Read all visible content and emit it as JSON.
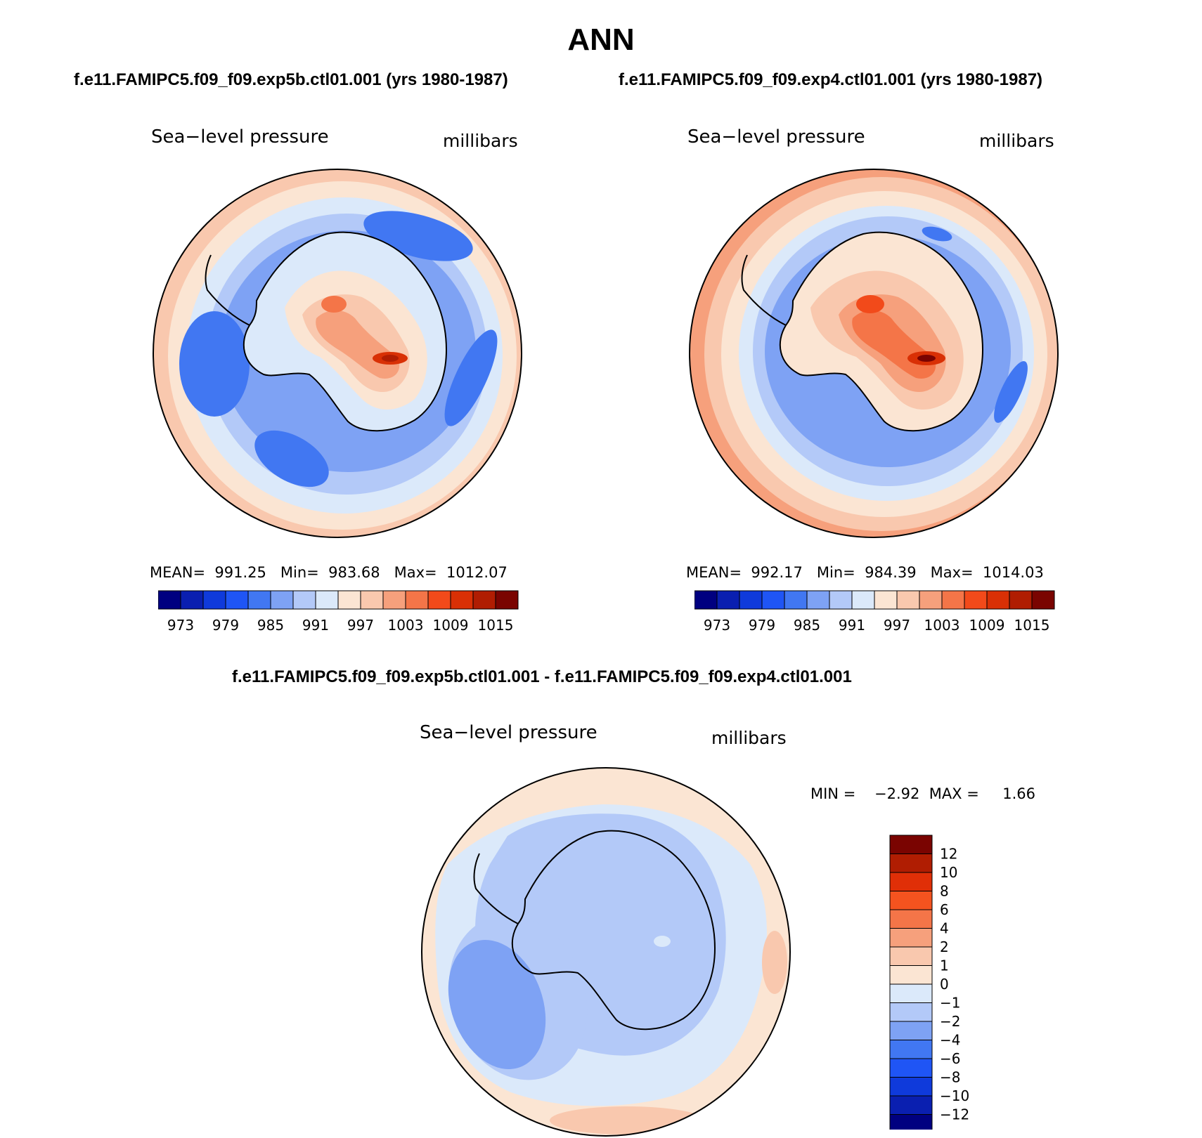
{
  "title": "ANN",
  "case_left": "f.e11.FAMIPC5.f09_f09.exp5b.ctl01.001 (yrs 1980-1987)",
  "case_right": "f.e11.FAMIPC5.f09_f09.exp4.ctl01.001 (yrs 1980-1987)",
  "diff_title": "f.e11.FAMIPC5.f09_f09.exp5b.ctl01.001 - f.e11.FAMIPC5.f09_f09.exp4.ctl01.001",
  "panels": {
    "left": {
      "variable": "Sea−level pressure",
      "units": "millibars",
      "stats": "MEAN=  991.25   Min=  983.68   Max=  1012.07"
    },
    "right": {
      "variable": "Sea−level pressure",
      "units": "millibars",
      "stats": "MEAN=  992.17   Min=  984.39   Max=  1014.03"
    },
    "diff": {
      "variable": "Sea−level pressure",
      "units": "millibars",
      "stats": "MIN =    −2.92  MAX =     1.66"
    }
  },
  "abs_colorbar": {
    "colors": [
      "#000080",
      "#0a1fb0",
      "#0f3adb",
      "#1f55f5",
      "#4177f2",
      "#7ea2f4",
      "#b3c9f8",
      "#dbe9fa",
      "#fbe5d3",
      "#f9c8ae",
      "#f6a07c",
      "#f47548",
      "#f24a1a",
      "#d93005",
      "#b01d02",
      "#7a0401"
    ],
    "labels": [
      "973",
      "979",
      "985",
      "991",
      "997",
      "1003",
      "1009",
      "1015"
    ]
  },
  "diff_colorbar": {
    "colors": [
      "#7a0401",
      "#b01d02",
      "#e02f07",
      "#f4531f",
      "#f47548",
      "#f6a07c",
      "#f9c8ae",
      "#fbe5d3",
      "#dbe9fa",
      "#b3c9f8",
      "#7ea2f4",
      "#4177f2",
      "#1f55f5",
      "#0f3adb",
      "#0a1fb0",
      "#000080"
    ],
    "labels": [
      "12",
      "10",
      "8",
      "6",
      "4",
      "2",
      "1",
      "0",
      "−1",
      "−2",
      "−4",
      "−6",
      "−8",
      "−10",
      "−12"
    ]
  }
}
